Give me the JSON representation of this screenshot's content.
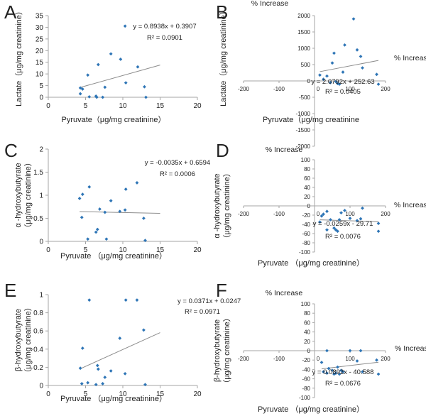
{
  "colors": {
    "point": "#2E75B6",
    "trend": "#8C8C8C",
    "axis": "#A6A6A6",
    "text": "#222222"
  },
  "chart_data": [
    {
      "panel_label": "A",
      "type": "scatter",
      "xlabel": "Pyruvate（μg/mg creatinine）",
      "ylabel": [
        "Lactate（μg/mg creatinine）"
      ],
      "xlim": [
        0,
        20
      ],
      "ylim": [
        0,
        35
      ],
      "xticks": [
        0,
        5,
        10,
        15,
        20
      ],
      "yticks": [
        0,
        5,
        10,
        15,
        20,
        25,
        30,
        35
      ],
      "points": [
        [
          4.3,
          4
        ],
        [
          4.3,
          1.5
        ],
        [
          4.6,
          3.5
        ],
        [
          5.3,
          9.5
        ],
        [
          5.5,
          0.2
        ],
        [
          6.4,
          0.5
        ],
        [
          6.5,
          0
        ],
        [
          6.7,
          14
        ],
        [
          7.3,
          0
        ],
        [
          7.6,
          4.3
        ],
        [
          8.4,
          18.6
        ],
        [
          9.7,
          16.3
        ],
        [
          10.3,
          30.5
        ],
        [
          10.4,
          6.2
        ],
        [
          12,
          13
        ],
        [
          12.9,
          4.5
        ],
        [
          13.1,
          0
        ]
      ],
      "trendline": {
        "slope": 0.8938,
        "intercept": 0.3907,
        "x_range": [
          4.3,
          15
        ]
      },
      "equation": "y = 0.8938x + 0.3907",
      "r2": "R² = 0.0901",
      "quadrant": false
    },
    {
      "panel_label": "B",
      "type": "scatter",
      "xlabel": "Pyruvate（μg/mg creatinine",
      "ylabel": [
        "Lactate（μg/mg creatinine）"
      ],
      "axis_name_x": "% Increase",
      "axis_name_y": "% Increase",
      "xlim": [
        -200,
        200
      ],
      "ylim": [
        -2000,
        2000
      ],
      "xticks": [
        -200,
        -100,
        0,
        100,
        200
      ],
      "yticks": [
        -2000,
        -1500,
        -1000,
        -500,
        0,
        500,
        1000,
        1500,
        2000
      ],
      "points": [
        [
          15,
          180
        ],
        [
          25,
          50
        ],
        [
          35,
          150
        ],
        [
          45,
          -50
        ],
        [
          50,
          550
        ],
        [
          55,
          850
        ],
        [
          60,
          -20
        ],
        [
          65,
          -80
        ],
        [
          70,
          -100
        ],
        [
          80,
          270
        ],
        [
          85,
          1100
        ],
        [
          110,
          1900
        ],
        [
          120,
          950
        ],
        [
          130,
          750
        ],
        [
          135,
          400
        ],
        [
          175,
          200
        ],
        [
          180,
          -100
        ]
      ],
      "trendline": {
        "slope": 2.0792,
        "intercept": 252.63,
        "x_range": [
          15,
          180
        ]
      },
      "equation": "y = 2.0792x + 252.63",
      "r2": "R² = 0.0405",
      "quadrant": true
    },
    {
      "panel_label": "C",
      "type": "scatter",
      "xlabel": "Pyruvate （μg/mg creatinine）",
      "ylabel": [
        "α -hydroxybutyrate",
        "（μg/mg creatinine）"
      ],
      "xlim": [
        0,
        20
      ],
      "ylim": [
        0,
        2
      ],
      "xticks": [
        0,
        5,
        10,
        15,
        20
      ],
      "yticks": [
        0,
        0.5,
        1,
        1.5,
        2
      ],
      "points": [
        [
          4.2,
          0.93
        ],
        [
          4.5,
          0.52
        ],
        [
          4.6,
          1.02
        ],
        [
          5.3,
          0.05
        ],
        [
          5.5,
          1.18
        ],
        [
          6.4,
          0.2
        ],
        [
          6.6,
          0.26
        ],
        [
          6.9,
          0.7
        ],
        [
          7.6,
          0.63
        ],
        [
          7.8,
          0.05
        ],
        [
          8.4,
          0.88
        ],
        [
          9.6,
          0.65
        ],
        [
          10.3,
          0.68
        ],
        [
          10.4,
          1.13
        ],
        [
          11.9,
          1.27
        ],
        [
          12.8,
          0.5
        ],
        [
          13,
          0.02
        ]
      ],
      "trendline": {
        "slope": -0.0035,
        "intercept": 0.6594,
        "x_range": [
          4.2,
          15
        ]
      },
      "equation": "y = -0.0035x + 0.6594",
      "r2": "R² = 0.0006",
      "quadrant": false
    },
    {
      "panel_label": "D",
      "type": "scatter",
      "xlabel": "Pyruvate （μg/mg creatinine）",
      "ylabel": [
        "α -hydroxybutyrate",
        "（μg/mg creatinine）"
      ],
      "axis_name_x": "% Increase",
      "axis_name_y": "% Increase",
      "xlim": [
        -200,
        200
      ],
      "ylim": [
        -100,
        100
      ],
      "xticks": [
        -200,
        -100,
        0,
        100,
        200
      ],
      "yticks": [
        -100,
        -80,
        -60,
        -40,
        -20,
        0,
        20,
        40,
        60,
        80,
        100
      ],
      "points": [
        [
          15,
          -35
        ],
        [
          20,
          -22
        ],
        [
          25,
          -18
        ],
        [
          35,
          -12
        ],
        [
          35,
          -52
        ],
        [
          45,
          -30
        ],
        [
          55,
          -48
        ],
        [
          60,
          -52
        ],
        [
          65,
          -55
        ],
        [
          70,
          -30
        ],
        [
          75,
          -15
        ],
        [
          85,
          -10
        ],
        [
          100,
          -27
        ],
        [
          120,
          -32
        ],
        [
          130,
          -28
        ],
        [
          135,
          -5
        ],
        [
          180,
          -38
        ],
        [
          180,
          -55
        ]
      ],
      "trendline": {
        "slope": -0.0259,
        "intercept": -29.71,
        "x_range": [
          15,
          180
        ]
      },
      "equation": "y = -0.0259x - 29.71",
      "r2": "R² = 0.0076",
      "quadrant": true
    },
    {
      "panel_label": "E",
      "type": "scatter",
      "xlabel": "Pyruvate （μg/mg creatinine）",
      "ylabel": [
        "β-hydroxybutyrate",
        "（μg/mg creatinine）"
      ],
      "xlim": [
        0,
        20
      ],
      "ylim": [
        0,
        1
      ],
      "xticks": [
        0,
        5,
        10,
        15,
        20
      ],
      "yticks": [
        0,
        0.2,
        0.4,
        0.6,
        0.8,
        1
      ],
      "points": [
        [
          4.3,
          0.19
        ],
        [
          4.5,
          0.02
        ],
        [
          4.6,
          0.41
        ],
        [
          5.3,
          0.03
        ],
        [
          5.5,
          0.94
        ],
        [
          6.4,
          0.01
        ],
        [
          6.6,
          0.22
        ],
        [
          6.7,
          0.18
        ],
        [
          7.3,
          0.02
        ],
        [
          7.6,
          0.09
        ],
        [
          8.4,
          0.16
        ],
        [
          9.6,
          0.52
        ],
        [
          10.3,
          0.13
        ],
        [
          10.4,
          0.94
        ],
        [
          11.9,
          0.94
        ],
        [
          12.8,
          0.61
        ],
        [
          13,
          0.01
        ]
      ],
      "trendline": {
        "slope": 0.0371,
        "intercept": 0.0247,
        "x_range": [
          4.3,
          15
        ]
      },
      "equation": "y = 0.0371x + 0.0247",
      "r2": "R² = 0.0971",
      "quadrant": false
    },
    {
      "panel_label": "F",
      "type": "scatter",
      "xlabel": "Pyruvate （μg/mg creatinine）",
      "ylabel": [
        "β-hydroxybutyrate",
        "（μg/mg creatinine）"
      ],
      "axis_name_x": "% Increase",
      "axis_name_y": "% Increase",
      "xlim": [
        -200,
        200
      ],
      "ylim": [
        -100,
        100
      ],
      "xticks": [
        -200,
        -100,
        0,
        100,
        200
      ],
      "yticks": [
        -100,
        -80,
        -60,
        -40,
        -20,
        0,
        20,
        40,
        60,
        80,
        100
      ],
      "points": [
        [
          20,
          -25
        ],
        [
          25,
          -45
        ],
        [
          35,
          -48
        ],
        [
          35,
          0
        ],
        [
          40,
          -38
        ],
        [
          50,
          -42
        ],
        [
          55,
          -50
        ],
        [
          60,
          -48
        ],
        [
          65,
          -35
        ],
        [
          70,
          -50
        ],
        [
          75,
          -42
        ],
        [
          80,
          -45
        ],
        [
          100,
          0
        ],
        [
          120,
          -22
        ],
        [
          130,
          0
        ],
        [
          135,
          -45
        ],
        [
          175,
          -20
        ],
        [
          180,
          -50
        ]
      ],
      "trendline": {
        "slope": 0.0892,
        "intercept": -40.588,
        "x_range": [
          20,
          180
        ]
      },
      "equation": "y = 0.0892x - 40.588",
      "r2": "R² = 0.0676",
      "quadrant": true
    }
  ]
}
